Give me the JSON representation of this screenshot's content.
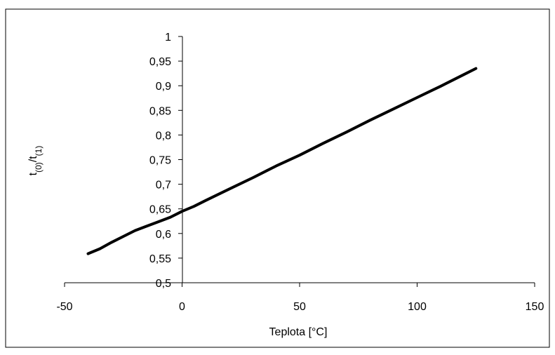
{
  "chart_data": {
    "type": "line",
    "title": "",
    "xlabel": "Teplota [°C]",
    "ylabel": {
      "main": "t",
      "sub1": "(0)",
      "slash": "/t",
      "sub2": "(1)"
    },
    "xlim": [
      -50,
      150
    ],
    "ylim": [
      0.5,
      1
    ],
    "x_ticks": [
      -50,
      0,
      50,
      100,
      150
    ],
    "x_tick_labels": [
      "-50",
      "0",
      "50",
      "100",
      "150"
    ],
    "y_ticks": [
      0.5,
      0.55,
      0.6,
      0.65,
      0.7,
      0.75,
      0.8,
      0.85,
      0.9,
      0.95,
      1
    ],
    "y_tick_labels": [
      "0,5",
      "0,55",
      "0,6",
      "0,65",
      "0,7",
      "0,75",
      "0,8",
      "0,85",
      "0,9",
      "0,95",
      "1"
    ],
    "grid": false,
    "legend": "none",
    "series": [
      {
        "color": "#000000",
        "x": [
          -40,
          -35,
          -30,
          -25,
          -20,
          -15,
          -10,
          -5,
          0,
          5,
          10,
          20,
          30,
          40,
          50,
          60,
          70,
          80,
          90,
          100,
          110,
          120,
          125
        ],
        "y": [
          0.559,
          0.569,
          0.582,
          0.594,
          0.606,
          0.615,
          0.624,
          0.633,
          0.645,
          0.655,
          0.667,
          0.69,
          0.713,
          0.737,
          0.759,
          0.783,
          0.806,
          0.83,
          0.853,
          0.876,
          0.899,
          0.923,
          0.935
        ]
      }
    ]
  }
}
